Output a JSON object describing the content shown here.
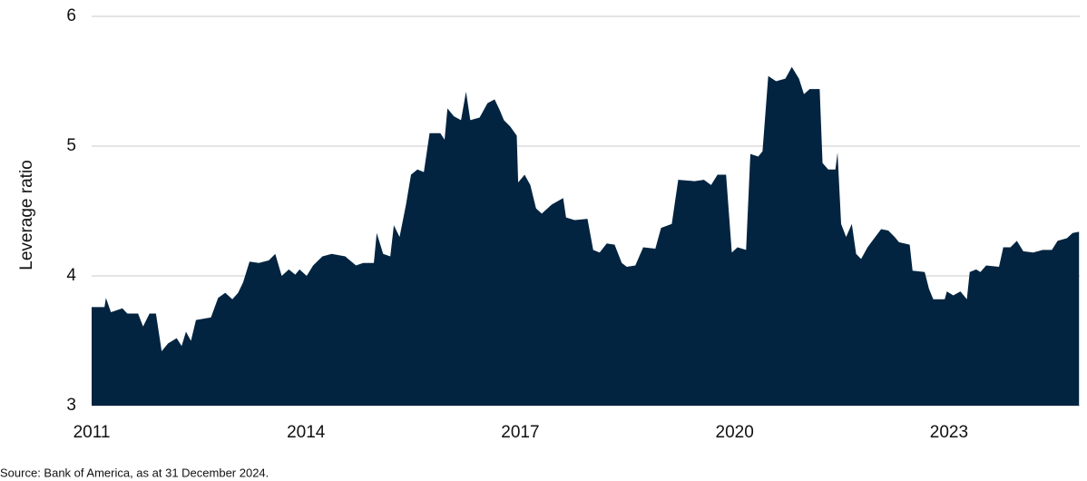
{
  "chart_data": {
    "type": "area",
    "y_label": "Leverage ratio",
    "source": "Source: Bank of America, as at 31 December 2024.",
    "color": "#022440",
    "grid": true,
    "xlim": [
      2011,
      2024.83
    ],
    "xticks": [
      2011,
      2014,
      2017,
      2020,
      2023
    ],
    "ylim": [
      3,
      6
    ],
    "yticks": [
      3,
      4,
      5,
      6
    ],
    "x": [
      2011.0,
      2011.18,
      2011.2,
      2011.27,
      2011.43,
      2011.5,
      2011.65,
      2011.72,
      2011.81,
      2011.9,
      2011.98,
      2012.07,
      2012.19,
      2012.26,
      2012.32,
      2012.39,
      2012.46,
      2012.67,
      2012.77,
      2012.87,
      2012.97,
      2013.05,
      2013.12,
      2013.21,
      2013.34,
      2013.48,
      2013.57,
      2013.66,
      2013.76,
      2013.85,
      2013.91,
      2014.01,
      2014.1,
      2014.23,
      2014.36,
      2014.55,
      2014.7,
      2014.8,
      2014.95,
      2014.99,
      2015.08,
      2015.18,
      2015.23,
      2015.31,
      2015.4,
      2015.47,
      2015.56,
      2015.65,
      2015.73,
      2015.88,
      2015.94,
      2015.98,
      2016.07,
      2016.17,
      2016.24,
      2016.3,
      2016.43,
      2016.54,
      2016.64,
      2016.71,
      2016.77,
      2016.86,
      2016.95,
      2016.97,
      2017.06,
      2017.14,
      2017.22,
      2017.3,
      2017.44,
      2017.6,
      2017.64,
      2017.76,
      2017.94,
      2018.02,
      2018.11,
      2018.21,
      2018.32,
      2018.42,
      2018.49,
      2018.61,
      2018.72,
      2018.89,
      2018.97,
      2019.12,
      2019.21,
      2019.44,
      2019.57,
      2019.67,
      2019.76,
      2019.88,
      2019.96,
      2020.04,
      2020.16,
      2020.22,
      2020.33,
      2020.39,
      2020.47,
      2020.58,
      2020.71,
      2020.8,
      2020.9,
      2020.97,
      2021.05,
      2021.19,
      2021.23,
      2021.31,
      2021.41,
      2021.44,
      2021.49,
      2021.56,
      2021.64,
      2021.7,
      2021.77,
      2021.86,
      2021.94,
      2022.05,
      2022.15,
      2022.24,
      2022.3,
      2022.45,
      2022.49,
      2022.66,
      2022.72,
      2022.78,
      2022.94,
      2022.97,
      2023.06,
      2023.16,
      2023.25,
      2023.29,
      2023.38,
      2023.44,
      2023.52,
      2023.7,
      2023.76,
      2023.86,
      2023.95,
      2024.04,
      2024.18,
      2024.31,
      2024.44,
      2024.52,
      2024.65,
      2024.73,
      2024.82
    ],
    "values": [
      3.76,
      3.76,
      3.83,
      3.72,
      3.75,
      3.71,
      3.71,
      3.61,
      3.71,
      3.71,
      3.42,
      3.48,
      3.52,
      3.46,
      3.57,
      3.5,
      3.66,
      3.68,
      3.83,
      3.87,
      3.82,
      3.87,
      3.95,
      4.11,
      4.1,
      4.12,
      4.17,
      4.0,
      4.05,
      4.01,
      4.05,
      4.0,
      4.08,
      4.15,
      4.17,
      4.15,
      4.08,
      4.1,
      4.1,
      4.33,
      4.17,
      4.15,
      4.39,
      4.3,
      4.55,
      4.78,
      4.82,
      4.8,
      5.1,
      5.1,
      5.05,
      5.29,
      5.23,
      5.2,
      5.42,
      5.2,
      5.22,
      5.33,
      5.36,
      5.28,
      5.2,
      5.15,
      5.08,
      4.72,
      4.78,
      4.7,
      4.52,
      4.48,
      4.55,
      4.6,
      4.45,
      4.43,
      4.44,
      4.2,
      4.18,
      4.25,
      4.24,
      4.1,
      4.07,
      4.08,
      4.22,
      4.21,
      4.37,
      4.4,
      4.74,
      4.73,
      4.74,
      4.7,
      4.78,
      4.78,
      4.18,
      4.22,
      4.2,
      4.94,
      4.92,
      4.96,
      5.54,
      5.5,
      5.52,
      5.61,
      5.52,
      5.4,
      5.44,
      5.44,
      4.87,
      4.82,
      4.82,
      4.95,
      4.4,
      4.3,
      4.4,
      4.17,
      4.13,
      4.22,
      4.28,
      4.36,
      4.35,
      4.3,
      4.26,
      4.24,
      4.04,
      4.03,
      3.9,
      3.82,
      3.82,
      3.88,
      3.85,
      3.88,
      3.82,
      4.03,
      4.05,
      4.03,
      4.08,
      4.07,
      4.22,
      4.22,
      4.27,
      4.19,
      4.18,
      4.2,
      4.2,
      4.27,
      4.29,
      4.33,
      4.34
    ]
  }
}
